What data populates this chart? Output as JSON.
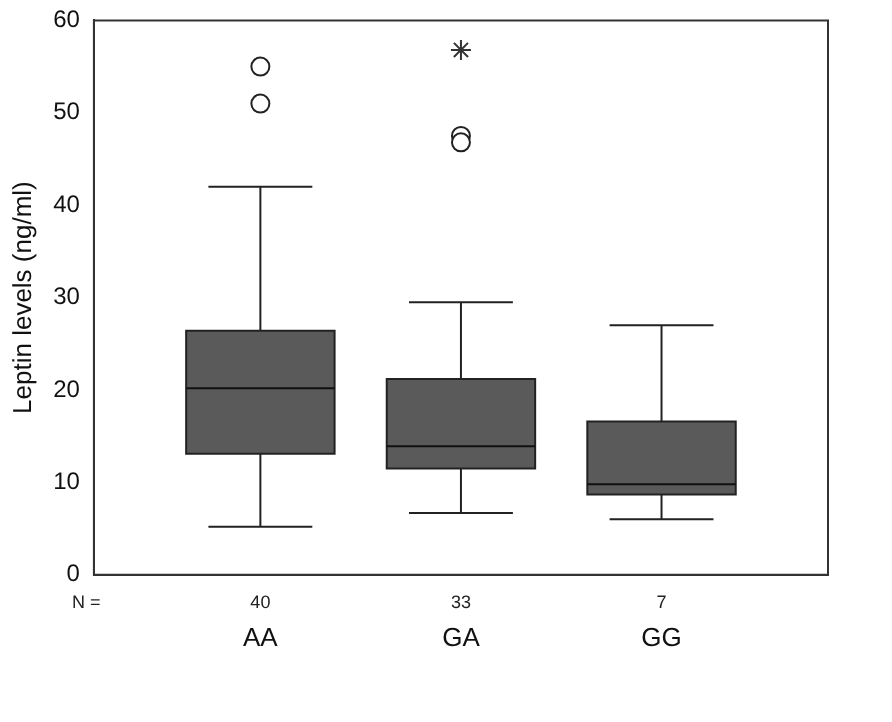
{
  "chart_data": {
    "type": "box",
    "ylabel": "Leptin levels (ng/ml)",
    "categories": [
      "AA",
      "GA",
      "GG"
    ],
    "color": "#5a5a5a",
    "boxes": [
      {
        "low": 5.2,
        "q1": 13.1,
        "median": 20.2,
        "q3": 26.4,
        "high": 42,
        "outliers": [
          55,
          51
        ]
      },
      {
        "low": 6.7,
        "q1": 11.5,
        "median": 13.9,
        "q3": 21.2,
        "high": 29.5,
        "outliers": [
          47.5,
          46.8
        ]
      },
      {
        "low": 6.0,
        "q1": 8.7,
        "median": 9.8,
        "q3": 16.6,
        "high": 27
      }
    ],
    "series": [
      {
        "type": "scatter",
        "x": [
          "GA"
        ],
        "values": [
          56.8
        ],
        "marker": "cross",
        "color": "#333333"
      }
    ],
    "ylim": [
      0,
      60
    ],
    "yticks": [
      0,
      10,
      20,
      30,
      40,
      50,
      60
    ],
    "grid": false,
    "legend": false,
    "annotations": [
      "N =",
      "40",
      "33",
      "7"
    ]
  }
}
